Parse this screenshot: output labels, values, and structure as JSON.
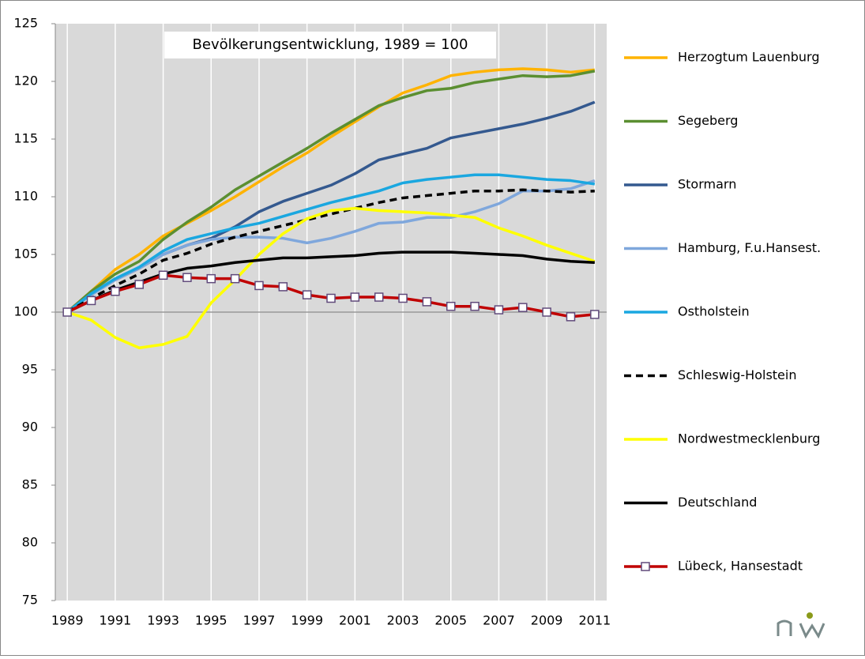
{
  "chart_data": {
    "type": "line",
    "title": "Bevölkerungsentwicklung, 1989 = 100",
    "x": [
      1989,
      1990,
      1991,
      1992,
      1993,
      1994,
      1995,
      1996,
      1997,
      1998,
      1999,
      2000,
      2001,
      2002,
      2003,
      2004,
      2005,
      2006,
      2007,
      2008,
      2009,
      2010,
      2011
    ],
    "xlim": [
      1988.5,
      2011.5
    ],
    "xticks": [
      1989,
      1991,
      1993,
      1995,
      1997,
      1999,
      2001,
      2003,
      2005,
      2007,
      2009,
      2011
    ],
    "ylim": [
      75,
      125
    ],
    "yticks": [
      75,
      80,
      85,
      90,
      95,
      100,
      105,
      110,
      115,
      120,
      125
    ],
    "x_axis_at": 100,
    "grid": true,
    "legend": "right",
    "series": [
      {
        "name": "Herzogtum  Lauenburg",
        "color": "#ffb300",
        "values": [
          100,
          101.8,
          103.7,
          105,
          106.6,
          107.7,
          108.8,
          110,
          111.3,
          112.6,
          113.8,
          115.2,
          116.5,
          117.8,
          119,
          119.7,
          120.5,
          120.8,
          121,
          121.1,
          121,
          120.8,
          121
        ]
      },
      {
        "name": "Segeberg",
        "color": "#5b8f31",
        "values": [
          100,
          101.8,
          103.3,
          104.4,
          106.3,
          107.8,
          109.1,
          110.6,
          111.8,
          113,
          114.2,
          115.5,
          116.7,
          117.9,
          118.6,
          119.2,
          119.4,
          119.9,
          120.2,
          120.5,
          120.4,
          120.5,
          120.9
        ]
      },
      {
        "name": "Stormarn",
        "color": "#34598f",
        "values": [
          100,
          101.6,
          102.8,
          103.8,
          105,
          105.8,
          106.4,
          107.4,
          108.7,
          109.6,
          110.3,
          111,
          112,
          113.2,
          113.7,
          114.2,
          115.1,
          115.5,
          115.9,
          116.3,
          116.8,
          117.4,
          118.2
        ]
      },
      {
        "name": "Hamburg, F.u.Hansest.",
        "color": "#7fa7dc",
        "values": [
          100,
          101.5,
          102.8,
          103.8,
          105,
          105.8,
          106.3,
          106.5,
          106.5,
          106.4,
          106,
          106.4,
          107,
          107.7,
          107.8,
          108.2,
          108.2,
          108.7,
          109.4,
          110.5,
          110.5,
          110.7,
          111.4
        ]
      },
      {
        "name": "Ostholstein",
        "color": "#1aa7e0",
        "values": [
          100,
          101.6,
          102.9,
          103.9,
          105.3,
          106.3,
          106.8,
          107.3,
          107.7,
          108.3,
          108.9,
          109.5,
          110,
          110.5,
          111.2,
          111.5,
          111.7,
          111.9,
          111.9,
          111.7,
          111.5,
          111.4,
          111.1
        ]
      },
      {
        "name": "Schleswig-Holstein",
        "color": "#000000",
        "dash": true,
        "values": [
          100,
          101.2,
          102.3,
          103.3,
          104.5,
          105.1,
          105.9,
          106.5,
          107,
          107.5,
          108,
          108.5,
          109,
          109.5,
          109.9,
          110.1,
          110.3,
          110.5,
          110.5,
          110.6,
          110.5,
          110.4,
          110.5
        ]
      },
      {
        "name": "Nordwestmecklenburg",
        "color": "#ffff00",
        "values": [
          100,
          99.3,
          97.8,
          96.9,
          97.2,
          97.9,
          100.8,
          102.8,
          105,
          106.8,
          108.1,
          108.8,
          109,
          108.8,
          108.7,
          108.6,
          108.4,
          108.2,
          107.3,
          106.6,
          105.8,
          105.1,
          104.4
        ]
      },
      {
        "name": "Deutschland",
        "color": "#000000",
        "values": [
          100,
          101,
          101.9,
          102.6,
          103.3,
          103.8,
          104,
          104.3,
          104.5,
          104.7,
          104.7,
          104.8,
          104.9,
          105.1,
          105.2,
          105.2,
          105.2,
          105.1,
          105,
          104.9,
          104.6,
          104.4,
          104.3
        ]
      },
      {
        "name": "Lübeck, Hansestadt",
        "color": "#c00000",
        "marker": "square",
        "values": [
          100,
          101,
          101.8,
          102.4,
          103.2,
          103,
          102.9,
          102.9,
          102.3,
          102.2,
          101.5,
          101.2,
          101.3,
          101.3,
          101.2,
          100.9,
          100.5,
          100.5,
          100.2,
          100.4,
          100,
          99.6,
          99.8
        ]
      }
    ]
  }
}
